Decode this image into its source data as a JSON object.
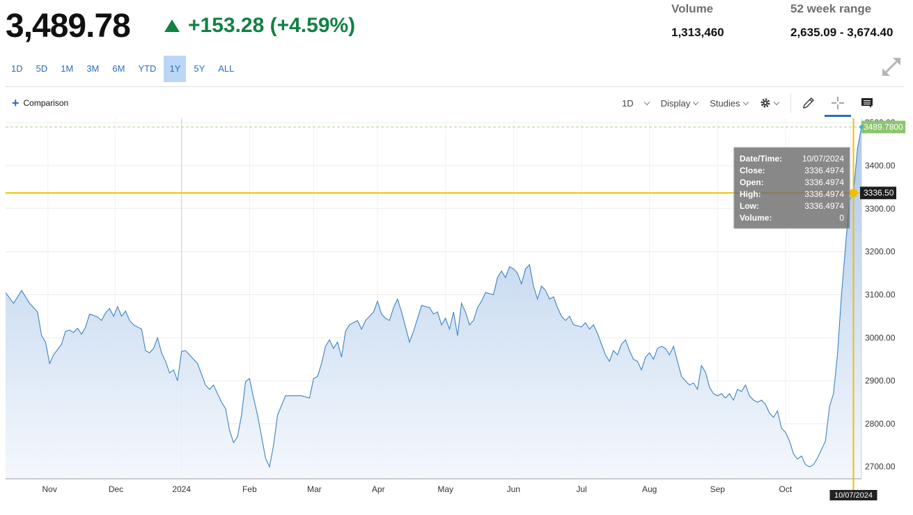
{
  "header": {
    "price": "3,489.78",
    "change": "+153.28 (+4.59%)",
    "volume_label": "Volume",
    "volume_value": "1,313,460",
    "range_label": "52 week range",
    "range_value": "2,635.09 - 3,674.40"
  },
  "range_buttons": [
    {
      "label": "1D",
      "active": false
    },
    {
      "label": "5D",
      "active": false
    },
    {
      "label": "1M",
      "active": false
    },
    {
      "label": "3M",
      "active": false
    },
    {
      "label": "6M",
      "active": false
    },
    {
      "label": "YTD",
      "active": false
    },
    {
      "label": "1Y",
      "active": true
    },
    {
      "label": "5Y",
      "active": false
    },
    {
      "label": "ALL",
      "active": false
    }
  ],
  "toolbar": {
    "comparison_label": "Comparison",
    "interval_label": "1D",
    "display_label": "Display",
    "studies_label": "Studies"
  },
  "colors": {
    "up": "#118144",
    "line": "#3b82c4",
    "crosshair": "#f2be00",
    "last_price_badge": "#8cc46e",
    "tab_blue": "#2a6ebd"
  },
  "chart_data": {
    "type": "area",
    "x_tick_labels": [
      "Nov",
      "Dec",
      "2024",
      "Feb",
      "Mar",
      "Apr",
      "May",
      "Jun",
      "Jul",
      "Aug",
      "Sep",
      "Oct"
    ],
    "y_ticks": [
      2700,
      2800,
      2900,
      3000,
      3100,
      3200,
      3300,
      3400,
      3500
    ],
    "y_tick_labels": [
      "2700.00",
      "2800.00",
      "2900.00",
      "3000.00",
      "3100.00",
      "3200.00",
      "3300.00",
      "3400.00",
      "3500.00"
    ],
    "ylim": [
      2672,
      3510
    ],
    "grid": true,
    "last_price": 3489.78,
    "last_price_label": "3489.7800",
    "crosshair_price_label": "3336.50",
    "crosshair_date_label": "10/07/2024",
    "tooltip": {
      "rows": [
        {
          "label": "Date/Time:",
          "value": "10/07/2024"
        },
        {
          "label": "Close:",
          "value": "3336.4974"
        },
        {
          "label": "Open:",
          "value": "3336.4974"
        },
        {
          "label": "High:",
          "value": "3336.4974"
        },
        {
          "label": "Low:",
          "value": "3336.4974"
        },
        {
          "label": "Volume:",
          "value": "0"
        }
      ]
    },
    "series": [
      {
        "values": [
          [
            2023.78,
            3105
          ],
          [
            2023.79,
            3080
          ],
          [
            2023.8,
            3110
          ],
          [
            2023.81,
            3080
          ],
          [
            2023.82,
            3060
          ],
          [
            2023.825,
            3005
          ],
          [
            2023.83,
            2990
          ],
          [
            2023.835,
            2940
          ],
          [
            2023.84,
            2960
          ],
          [
            2023.85,
            2985
          ],
          [
            2023.855,
            3015
          ],
          [
            2023.86,
            3018
          ],
          [
            2023.865,
            3012
          ],
          [
            2023.87,
            3022
          ],
          [
            2023.875,
            3008
          ],
          [
            2023.88,
            3025
          ],
          [
            2023.885,
            3055
          ],
          [
            2023.89,
            3052
          ],
          [
            2023.895,
            3048
          ],
          [
            2023.9,
            3040
          ],
          [
            2023.905,
            3058
          ],
          [
            2023.91,
            3068
          ],
          [
            2023.915,
            3050
          ],
          [
            2023.92,
            3072
          ],
          [
            2023.925,
            3050
          ],
          [
            2023.93,
            3062
          ],
          [
            2023.935,
            3040
          ],
          [
            2023.94,
            3030
          ],
          [
            2023.945,
            3025
          ],
          [
            2023.95,
            3020
          ],
          [
            2023.955,
            2970
          ],
          [
            2023.96,
            2965
          ],
          [
            2023.965,
            2975
          ],
          [
            2023.97,
            3000
          ],
          [
            2023.975,
            2965
          ],
          [
            2023.98,
            2945
          ],
          [
            2023.985,
            2918
          ],
          [
            2023.99,
            2925
          ],
          [
            2023.995,
            2900
          ],
          [
            2024.0,
            2968
          ],
          [
            2024.005,
            2970
          ],
          [
            2024.01,
            2960
          ],
          [
            2024.02,
            2940
          ],
          [
            2024.03,
            2890
          ],
          [
            2024.035,
            2880
          ],
          [
            2024.04,
            2890
          ],
          [
            2024.05,
            2850
          ],
          [
            2024.055,
            2835
          ],
          [
            2024.06,
            2785
          ],
          [
            2024.065,
            2756
          ],
          [
            2024.07,
            2770
          ],
          [
            2024.075,
            2820
          ],
          [
            2024.08,
            2898
          ],
          [
            2024.085,
            2905
          ],
          [
            2024.09,
            2860
          ],
          [
            2024.095,
            2820
          ],
          [
            2024.1,
            2770
          ],
          [
            2024.105,
            2720
          ],
          [
            2024.11,
            2700
          ],
          [
            2024.115,
            2750
          ],
          [
            2024.12,
            2820
          ],
          [
            2024.13,
            2865
          ],
          [
            2024.15,
            2865
          ],
          [
            2024.16,
            2860
          ],
          [
            2024.165,
            2905
          ],
          [
            2024.17,
            2910
          ],
          [
            2024.175,
            2940
          ],
          [
            2024.18,
            2980
          ],
          [
            2024.185,
            2995
          ],
          [
            2024.19,
            2975
          ],
          [
            2024.195,
            2990
          ],
          [
            2024.2,
            2955
          ],
          [
            2024.205,
            3015
          ],
          [
            2024.21,
            3030
          ],
          [
            2024.22,
            3040
          ],
          [
            2024.225,
            3020
          ],
          [
            2024.23,
            3040
          ],
          [
            2024.24,
            3060
          ],
          [
            2024.245,
            3085
          ],
          [
            2024.25,
            3055
          ],
          [
            2024.255,
            3045
          ],
          [
            2024.26,
            3040
          ],
          [
            2024.265,
            3070
          ],
          [
            2024.27,
            3090
          ],
          [
            2024.275,
            3060
          ],
          [
            2024.28,
            3025
          ],
          [
            2024.285,
            2990
          ],
          [
            2024.29,
            3015
          ],
          [
            2024.3,
            3075
          ],
          [
            2024.31,
            3070
          ],
          [
            2024.315,
            3055
          ],
          [
            2024.32,
            3060
          ],
          [
            2024.325,
            3030
          ],
          [
            2024.33,
            3045
          ],
          [
            2024.335,
            3020
          ],
          [
            2024.34,
            3060
          ],
          [
            2024.345,
            3005
          ],
          [
            2024.35,
            3080
          ],
          [
            2024.355,
            3060
          ],
          [
            2024.36,
            3030
          ],
          [
            2024.365,
            3040
          ],
          [
            2024.37,
            3070
          ],
          [
            2024.375,
            3085
          ],
          [
            2024.38,
            3105
          ],
          [
            2024.39,
            3100
          ],
          [
            2024.395,
            3140
          ],
          [
            2024.4,
            3155
          ],
          [
            2024.405,
            3140
          ],
          [
            2024.41,
            3165
          ],
          [
            2024.415,
            3160
          ],
          [
            2024.42,
            3150
          ],
          [
            2024.425,
            3125
          ],
          [
            2024.43,
            3160
          ],
          [
            2024.435,
            3170
          ],
          [
            2024.44,
            3120
          ],
          [
            2024.445,
            3090
          ],
          [
            2024.45,
            3120
          ],
          [
            2024.455,
            3110
          ],
          [
            2024.46,
            3090
          ],
          [
            2024.465,
            3095
          ],
          [
            2024.47,
            3070
          ],
          [
            2024.475,
            3050
          ],
          [
            2024.48,
            3040
          ],
          [
            2024.485,
            3050
          ],
          [
            2024.49,
            3030
          ],
          [
            2024.5,
            3025
          ],
          [
            2024.505,
            3035
          ],
          [
            2024.51,
            3020
          ],
          [
            2024.515,
            3030
          ],
          [
            2024.52,
            3010
          ],
          [
            2024.525,
            2985
          ],
          [
            2024.53,
            2960
          ],
          [
            2024.535,
            2945
          ],
          [
            2024.54,
            2970
          ],
          [
            2024.545,
            2960
          ],
          [
            2024.55,
            2985
          ],
          [
            2024.555,
            2995
          ],
          [
            2024.56,
            2970
          ],
          [
            2024.565,
            2950
          ],
          [
            2024.57,
            2945
          ],
          [
            2024.575,
            2925
          ],
          [
            2024.58,
            2955
          ],
          [
            2024.585,
            2965
          ],
          [
            2024.59,
            2950
          ],
          [
            2024.595,
            2975
          ],
          [
            2024.6,
            2980
          ],
          [
            2024.605,
            2975
          ],
          [
            2024.61,
            2960
          ],
          [
            2024.615,
            2980
          ],
          [
            2024.62,
            2945
          ],
          [
            2024.625,
            2910
          ],
          [
            2024.63,
            2900
          ],
          [
            2024.635,
            2890
          ],
          [
            2024.64,
            2895
          ],
          [
            2024.645,
            2880
          ],
          [
            2024.65,
            2935
          ],
          [
            2024.655,
            2920
          ],
          [
            2024.66,
            2885
          ],
          [
            2024.665,
            2870
          ],
          [
            2024.67,
            2865
          ],
          [
            2024.675,
            2870
          ],
          [
            2024.68,
            2860
          ],
          [
            2024.685,
            2870
          ],
          [
            2024.69,
            2855
          ],
          [
            2024.695,
            2880
          ],
          [
            2024.7,
            2875
          ],
          [
            2024.705,
            2890
          ],
          [
            2024.71,
            2865
          ],
          [
            2024.715,
            2855
          ],
          [
            2024.72,
            2850
          ],
          [
            2024.725,
            2855
          ],
          [
            2024.73,
            2845
          ],
          [
            2024.735,
            2825
          ],
          [
            2024.74,
            2815
          ],
          [
            2024.745,
            2830
          ],
          [
            2024.75,
            2790
          ],
          [
            2024.755,
            2780
          ],
          [
            2024.76,
            2760
          ],
          [
            2024.765,
            2730
          ],
          [
            2024.77,
            2718
          ],
          [
            2024.775,
            2725
          ],
          [
            2024.78,
            2705
          ],
          [
            2024.785,
            2700
          ],
          [
            2024.79,
            2705
          ],
          [
            2024.795,
            2720
          ],
          [
            2024.8,
            2740
          ],
          [
            2024.805,
            2760
          ],
          [
            2024.81,
            2840
          ],
          [
            2024.815,
            2870
          ],
          [
            2024.82,
            2960
          ],
          [
            2024.825,
            3100
          ],
          [
            2024.83,
            3210
          ],
          [
            2024.835,
            3320
          ],
          [
            2024.84,
            3336.5
          ],
          [
            2024.845,
            3440
          ],
          [
            2024.85,
            3489.78
          ]
        ]
      }
    ]
  }
}
